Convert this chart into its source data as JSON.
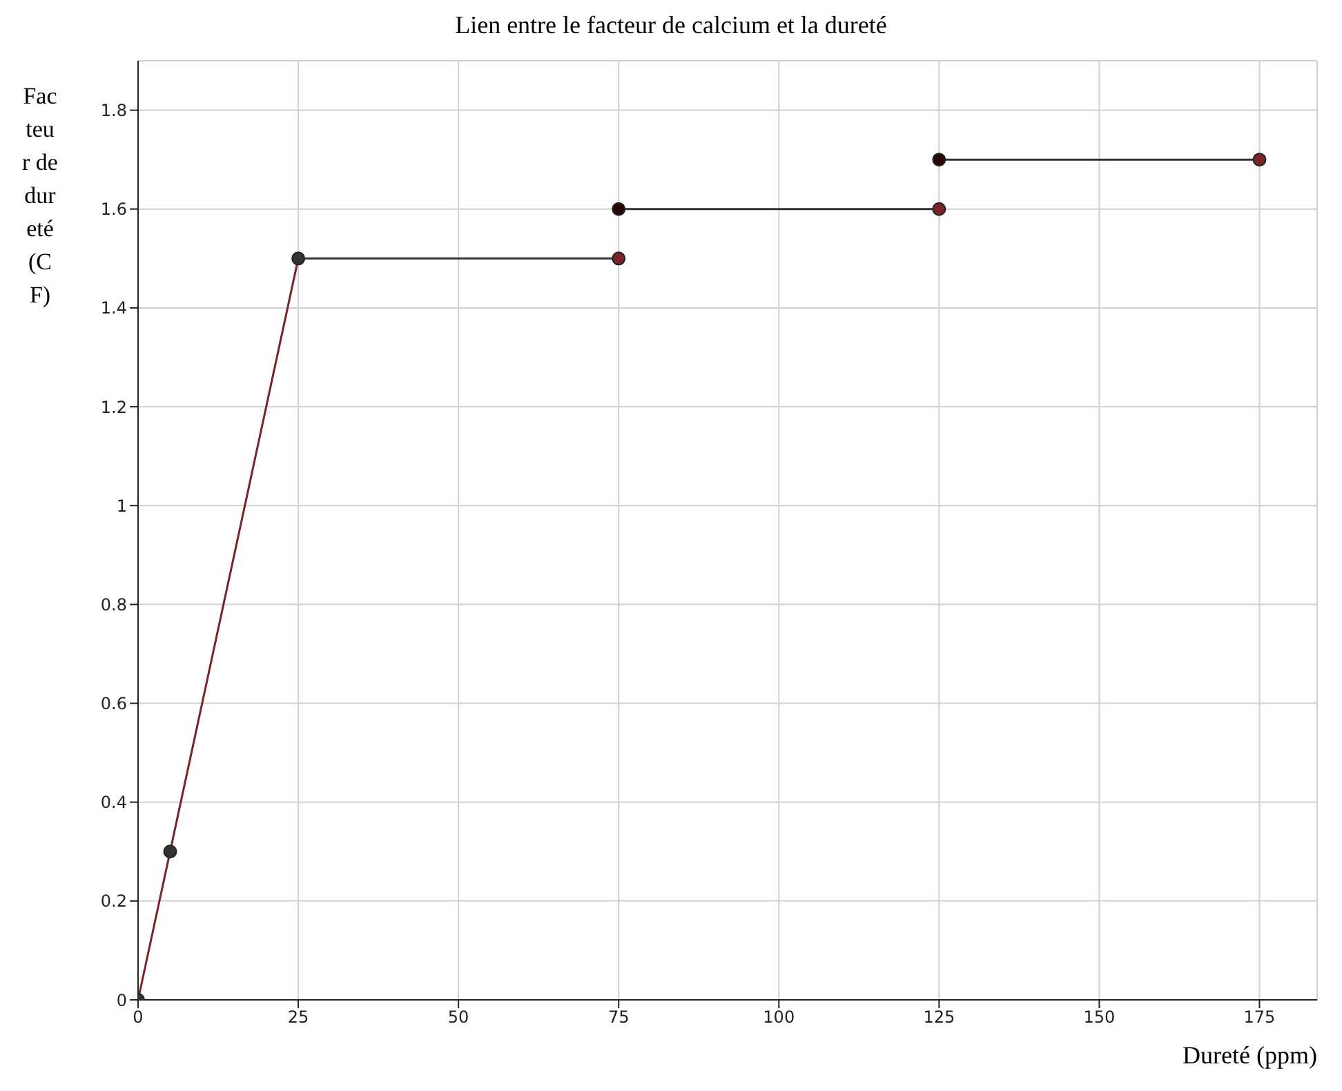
{
  "chart_data": {
    "type": "line",
    "title": "Lien entre le facteur de calcium et la dureté",
    "xlabel": "Dureté (ppm)",
    "ylabel": "Facteur de dureté (CF)",
    "xlim": [
      0,
      184
    ],
    "ylim": [
      0,
      1.9
    ],
    "xticks": [
      0,
      25,
      50,
      75,
      100,
      125,
      150,
      175
    ],
    "yticks": [
      0,
      0.2,
      0.4,
      0.6,
      0.8,
      1,
      1.2,
      1.4,
      1.6,
      1.8
    ],
    "grid": true,
    "series": [
      {
        "color": "#7a2525",
        "x": [
          0,
          5,
          25
        ],
        "values": [
          0,
          0.3,
          1.5
        ],
        "marker": "none"
      },
      {
        "color": "#333333",
        "x": [
          25,
          75
        ],
        "values": [
          1.5,
          1.5
        ],
        "marker": "none"
      },
      {
        "color": "#333333",
        "x": [
          75,
          125
        ],
        "values": [
          1.6,
          1.6
        ],
        "marker": "none"
      },
      {
        "color": "#333333",
        "x": [
          125,
          175
        ],
        "values": [
          1.7,
          1.7
        ],
        "marker": "none"
      },
      {
        "type": "scatter",
        "color": "#333333",
        "x": [
          0,
          5,
          25
        ],
        "values": [
          0,
          0.3,
          1.5
        ],
        "marker": "circle"
      },
      {
        "type": "scatter",
        "color": "#2a0505",
        "x": [
          75,
          125
        ],
        "values": [
          1.6,
          1.7
        ],
        "marker": "circle"
      },
      {
        "type": "scatter",
        "color": "#7a2525",
        "x": [
          75,
          125,
          175
        ],
        "values": [
          1.5,
          1.6,
          1.7
        ],
        "marker": "circle"
      }
    ]
  }
}
